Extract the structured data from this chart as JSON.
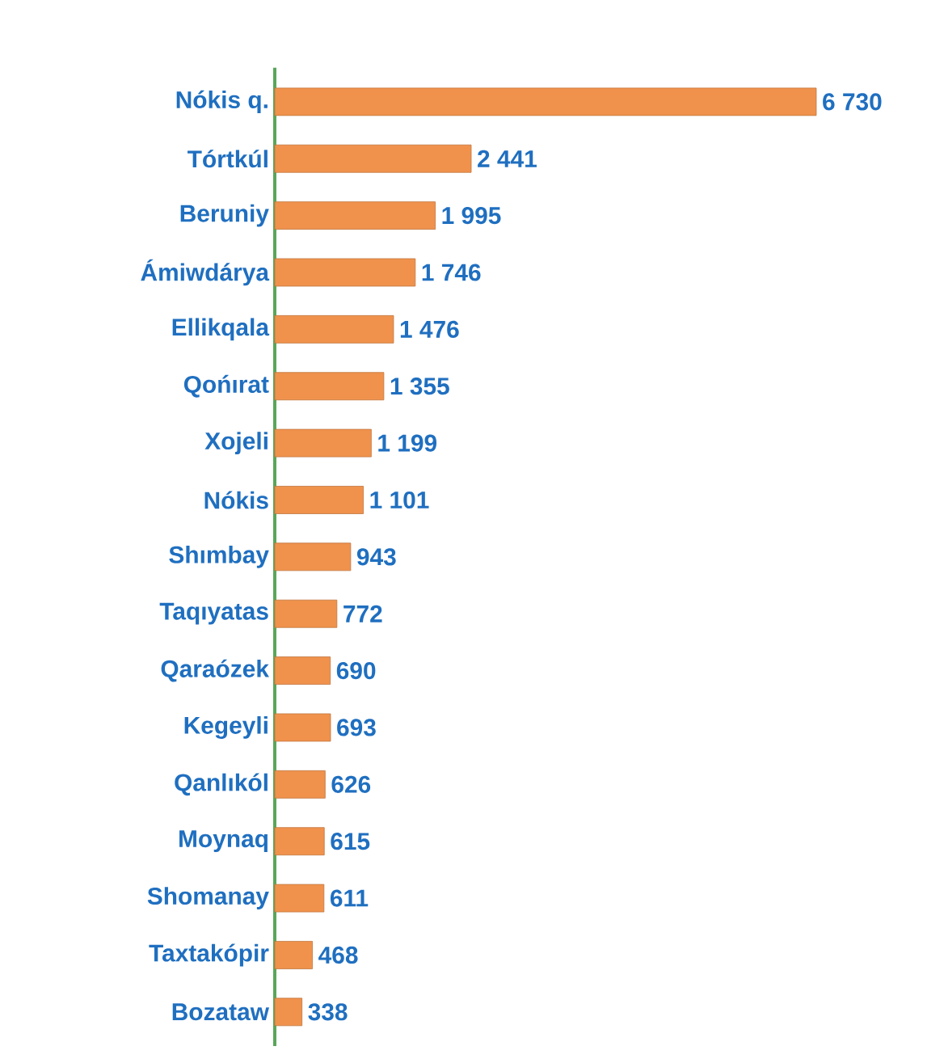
{
  "chart_data": {
    "type": "bar",
    "orientation": "horizontal",
    "categories": [
      "Nókis q.",
      "Tórtkúl",
      "Beruniy",
      "Ámiwdárya",
      "Ellikqala",
      "Qońırat",
      "Xojeli",
      "Nókis",
      "Shımbay",
      "Taqıyatas",
      "Qaraózek",
      "Kegeyli",
      "Qanlıkól",
      "Moynaq",
      "Shomanay",
      "Taxtakópir",
      "Bozataw"
    ],
    "values": [
      6730,
      2441,
      1995,
      1746,
      1476,
      1355,
      1199,
      1101,
      943,
      772,
      690,
      693,
      626,
      615,
      611,
      468,
      338
    ],
    "value_labels": [
      "6 730",
      "2 441",
      "1 995",
      "1 746",
      "1 476",
      "1 355",
      "1 199",
      "1 101",
      "943",
      "772",
      "690",
      "693",
      "626",
      "615",
      "611",
      "468",
      "338"
    ],
    "color": "#f0924c"
  }
}
